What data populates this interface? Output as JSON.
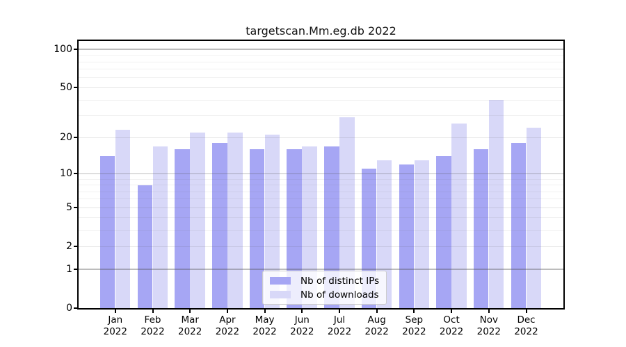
{
  "title": "targetscan.Mm.eg.db 2022",
  "colors": {
    "distinct_ips_bar": "#a6a6f4",
    "downloads_bar": "#d8d8f8",
    "axis": "#000000",
    "background": "#ffffff",
    "gridline_major": "#b4b4b4"
  },
  "legend": {
    "items": [
      {
        "label": "Nb of distinct IPs",
        "color": "#a6a6f4"
      },
      {
        "label": "Nb of downloads",
        "color": "#d8d8f8"
      }
    ]
  },
  "chart_data": {
    "type": "bar",
    "title": "targetscan.Mm.eg.db 2022",
    "categories": [
      "Jan",
      "Feb",
      "Mar",
      "Apr",
      "May",
      "Jun",
      "Jul",
      "Aug",
      "Sep",
      "Oct",
      "Nov",
      "Dec"
    ],
    "year": "2022",
    "series": [
      {
        "name": "Nb of distinct IPs",
        "color": "#a6a6f4",
        "values": [
          14,
          8,
          16,
          18,
          16,
          16,
          17,
          11,
          12,
          14,
          16,
          18
        ]
      },
      {
        "name": "Nb of downloads",
        "color": "#d8d8f8",
        "values": [
          23,
          17,
          22,
          22,
          21,
          17,
          29,
          13,
          13,
          26,
          40,
          24
        ]
      }
    ],
    "xlabel": "",
    "ylabel": "",
    "y_scale": "log1p",
    "y_ticks": [
      100,
      50,
      20,
      10,
      5,
      2,
      1,
      0
    ],
    "y_minor_gridlines": [
      3,
      4,
      6,
      7,
      8,
      9,
      30,
      40,
      60,
      70,
      80,
      90
    ],
    "y_mid_gridlines": [
      2,
      5,
      20,
      50
    ],
    "y_major_gridlines": [
      1,
      10,
      100
    ],
    "ylim": [
      0,
      117
    ],
    "grid": "horizontal",
    "legend_position": "bottom-center-inside"
  }
}
